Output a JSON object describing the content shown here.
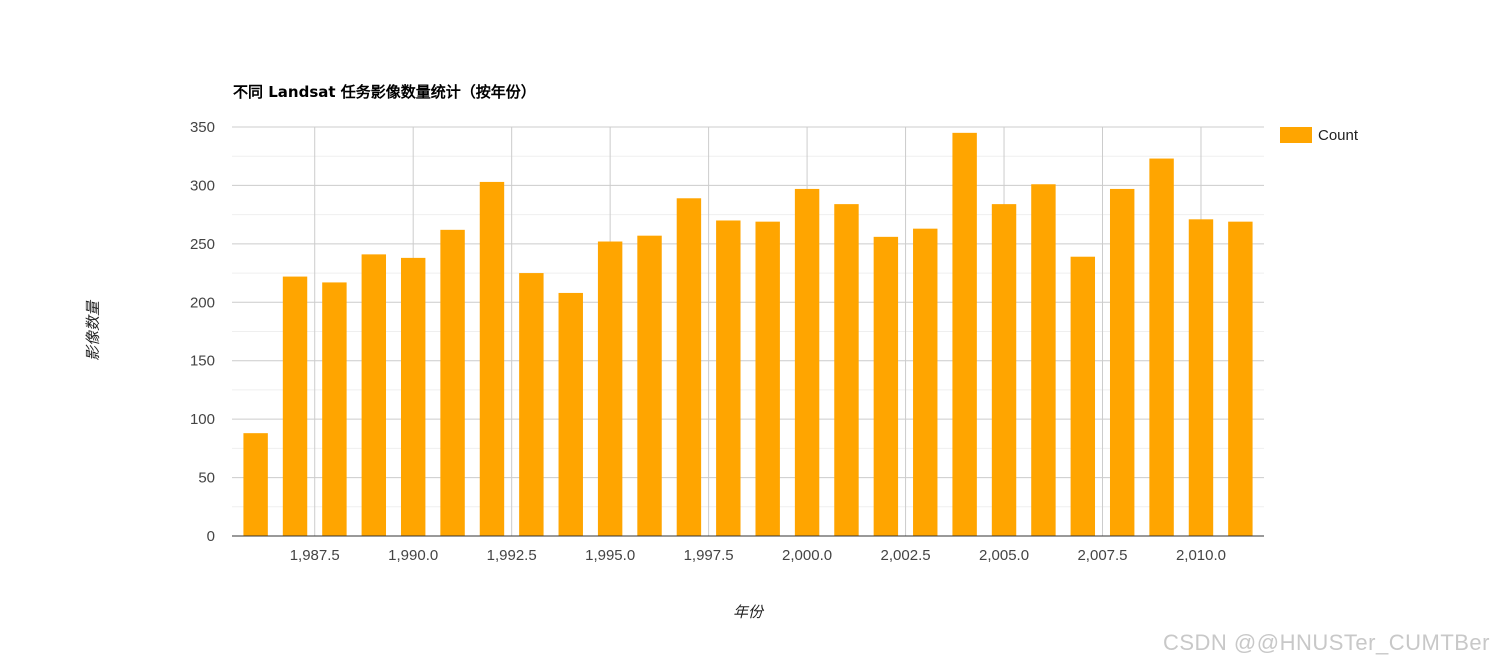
{
  "chart_data": {
    "type": "bar",
    "title": "不同 Landsat 任务影像数量统计（按年份）",
    "xlabel": "年份",
    "ylabel": "影像数量",
    "series": [
      {
        "name": "Count",
        "color": "#ffa500",
        "x": [
          1986,
          1987,
          1988,
          1989,
          1990,
          1991,
          1992,
          1993,
          1994,
          1995,
          1996,
          1997,
          1998,
          1999,
          2000,
          2001,
          2002,
          2003,
          2004,
          2005,
          2006,
          2007,
          2008,
          2009,
          2010,
          2011
        ],
        "values": [
          88,
          222,
          217,
          241,
          238,
          262,
          303,
          225,
          208,
          252,
          257,
          289,
          270,
          269,
          297,
          284,
          256,
          263,
          345,
          284,
          301,
          239,
          297,
          323,
          271,
          269
        ]
      }
    ],
    "xlim": [
      1985.4,
      2011.6
    ],
    "ylim": [
      0,
      350
    ],
    "yticks": [
      "0",
      "50",
      "100",
      "150",
      "200",
      "250",
      "300",
      "350"
    ],
    "xticks": [
      {
        "value": 1987.5,
        "label": "1,987.5"
      },
      {
        "value": 1990.0,
        "label": "1,990.0"
      },
      {
        "value": 1992.5,
        "label": "1,992.5"
      },
      {
        "value": 1995.0,
        "label": "1,995.0"
      },
      {
        "value": 1997.5,
        "label": "1,997.5"
      },
      {
        "value": 2000.0,
        "label": "2,000.0"
      },
      {
        "value": 2002.5,
        "label": "2,002.5"
      },
      {
        "value": 2005.0,
        "label": "2,005.0"
      },
      {
        "value": 2007.5,
        "label": "2,007.5"
      },
      {
        "value": 2010.0,
        "label": "2,010.0"
      }
    ],
    "grid": true,
    "legend": "right"
  },
  "watermark": "CSDN @@HNUSTer_CUMTBer"
}
